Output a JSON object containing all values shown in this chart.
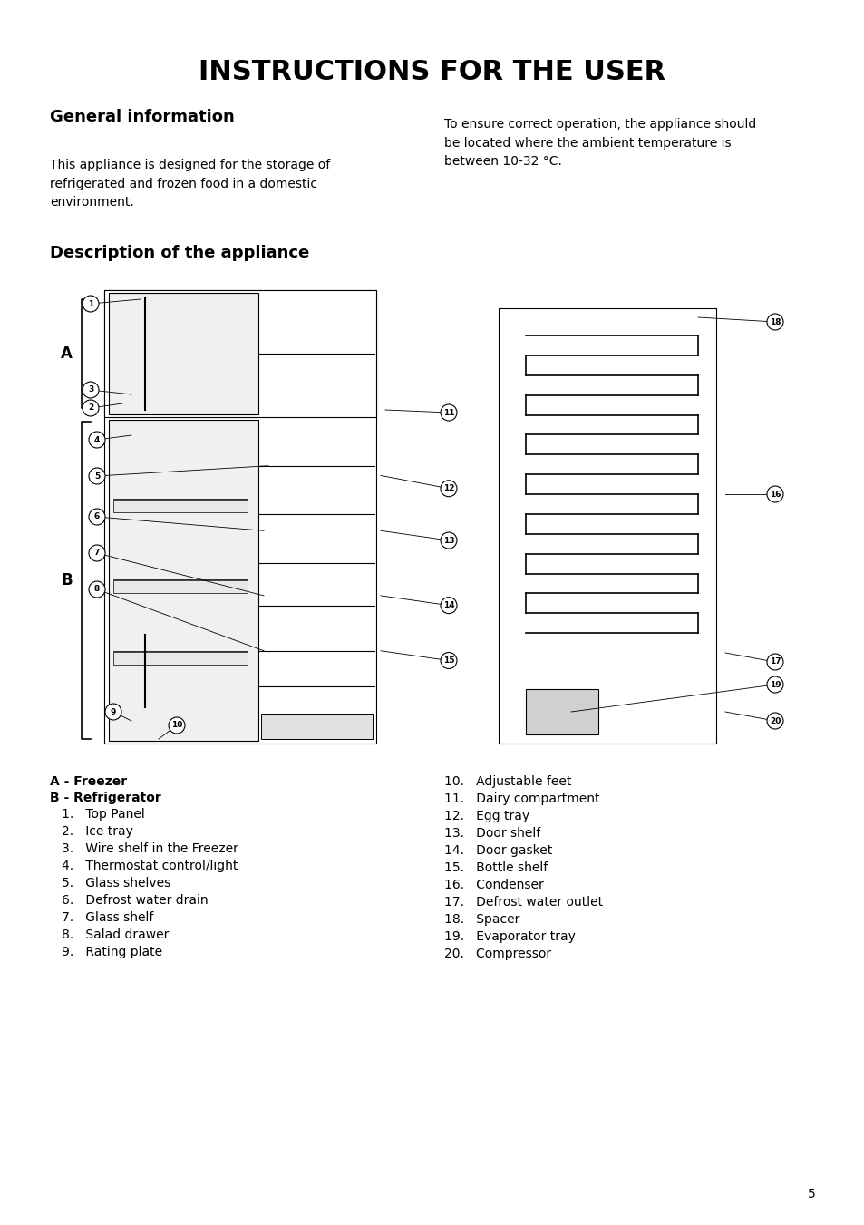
{
  "title": "INSTRUCTIONS FOR THE USER",
  "section1_heading": "General information",
  "section1_left": "This appliance is designed for the storage of\nrefrigerated and frozen food in a domestic\nenvironment.",
  "section1_right": "To ensure correct operation, the appliance should\nbe located where the ambient temperature is\nbetween 10-32 °C.",
  "section2_heading": "Description of the appliance",
  "left_list_header1": "A - Freezer",
  "left_list_header2": "B - Refrigerator",
  "left_list": [
    "1.   Top Panel",
    "2.   Ice tray",
    "3.   Wire shelf in the Freezer",
    "4.   Thermostat control/light",
    "5.   Glass shelves",
    "6.   Defrost water drain",
    "7.   Glass shelf",
    "8.   Salad drawer",
    "9.   Rating plate"
  ],
  "right_list": [
    "10.   Adjustable feet",
    "11.   Dairy compartment",
    "12.   Egg tray",
    "13.   Door shelf",
    "14.   Door gasket",
    "15.   Bottle shelf",
    "16.   Condenser",
    "17.   Defrost water outlet",
    "18.   Spacer",
    "19.   Evaporator tray",
    "20.   Compressor"
  ],
  "page_number": "5",
  "bg_color": "#ffffff",
  "text_color": "#000000",
  "title_font_size": 22,
  "heading_font_size": 13,
  "body_font_size": 10,
  "list_font_size": 10
}
